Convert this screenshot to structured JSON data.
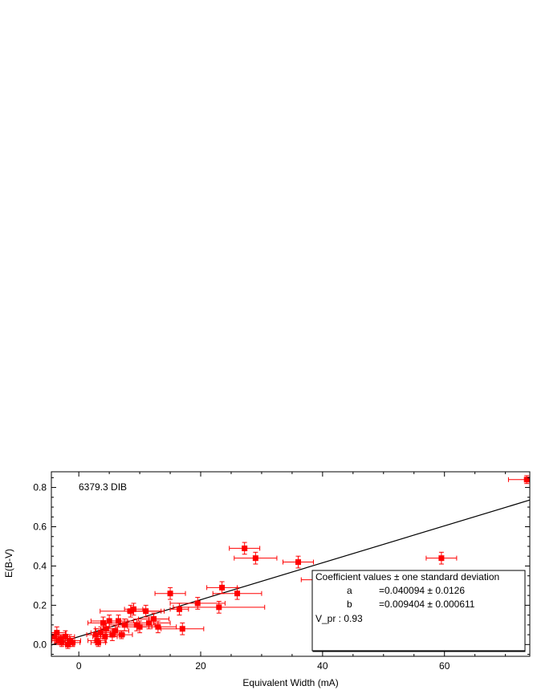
{
  "chart_data": {
    "type": "scatter",
    "annotation": "6379.3 DIB",
    "xlabel": "Equivalent Width (mA)",
    "ylabel": "E(B-V)",
    "xlim": [
      -4.5,
      74
    ],
    "ylim": [
      -0.06,
      0.88
    ],
    "xticks": [
      0,
      20,
      40,
      60
    ],
    "yticks": [
      0.0,
      0.2,
      0.4,
      0.6,
      0.8
    ],
    "ytick_labels": [
      "0.0",
      "0.2",
      "0.4",
      "0.6",
      "0.8"
    ],
    "grid": false,
    "point_color": "#ff0000",
    "fit_color": "#000000",
    "fit": {
      "a": 0.040094,
      "b": 0.009404,
      "x_range": [
        -4.5,
        74
      ]
    },
    "fit_box": {
      "title": "Coefficient values ± one standard deviation",
      "rows": [
        {
          "name": "a",
          "value": "=0.040094 ± 0.0126"
        },
        {
          "name": "b",
          "value": "=0.009404 ± 0.000611"
        }
      ],
      "vpr": "V_pr : 0.93"
    },
    "points": [
      {
        "x": -4.0,
        "y": 0.04,
        "xerr": 1.2,
        "yerr": 0.02
      },
      {
        "x": -3.6,
        "y": 0.06,
        "xerr": 1.5,
        "yerr": 0.03
      },
      {
        "x": -3.4,
        "y": 0.02,
        "xerr": 1.0,
        "yerr": 0.02
      },
      {
        "x": -3.0,
        "y": 0.03,
        "xerr": 1.6,
        "yerr": 0.02
      },
      {
        "x": -2.8,
        "y": 0.01,
        "xerr": 1.2,
        "yerr": 0.02
      },
      {
        "x": -2.2,
        "y": 0.04,
        "xerr": 1.5,
        "yerr": 0.03
      },
      {
        "x": -1.8,
        "y": 0.0,
        "xerr": 1.0,
        "yerr": 0.02
      },
      {
        "x": -1.5,
        "y": 0.02,
        "xerr": 1.8,
        "yerr": 0.03
      },
      {
        "x": -1.0,
        "y": 0.01,
        "xerr": 1.2,
        "yerr": 0.02
      },
      {
        "x": 2.8,
        "y": 0.05,
        "xerr": 1.5,
        "yerr": 0.03
      },
      {
        "x": 3.0,
        "y": 0.02,
        "xerr": 1.5,
        "yerr": 0.02
      },
      {
        "x": 3.2,
        "y": 0.01,
        "xerr": 1.2,
        "yerr": 0.02
      },
      {
        "x": 3.6,
        "y": 0.06,
        "xerr": 1.6,
        "yerr": 0.03
      },
      {
        "x": 4.0,
        "y": 0.11,
        "xerr": 2.5,
        "yerr": 0.03
      },
      {
        "x": 4.3,
        "y": 0.04,
        "xerr": 2.0,
        "yerr": 0.03
      },
      {
        "x": 4.5,
        "y": 0.08,
        "xerr": 1.8,
        "yerr": 0.03
      },
      {
        "x": 5.0,
        "y": 0.12,
        "xerr": 3.0,
        "yerr": 0.03
      },
      {
        "x": 5.5,
        "y": 0.05,
        "xerr": 2.0,
        "yerr": 0.03
      },
      {
        "x": 6.0,
        "y": 0.07,
        "xerr": 2.2,
        "yerr": 0.03
      },
      {
        "x": 6.5,
        "y": 0.12,
        "xerr": 2.5,
        "yerr": 0.03
      },
      {
        "x": 7.0,
        "y": 0.05,
        "xerr": 1.8,
        "yerr": 0.02
      },
      {
        "x": 7.5,
        "y": 0.1,
        "xerr": 2.5,
        "yerr": 0.03
      },
      {
        "x": 8.5,
        "y": 0.17,
        "xerr": 5.0,
        "yerr": 0.03
      },
      {
        "x": 9.0,
        "y": 0.18,
        "xerr": 1.5,
        "yerr": 0.03
      },
      {
        "x": 9.5,
        "y": 0.1,
        "xerr": 3.0,
        "yerr": 0.03
      },
      {
        "x": 10.0,
        "y": 0.09,
        "xerr": 2.0,
        "yerr": 0.03
      },
      {
        "x": 11.0,
        "y": 0.17,
        "xerr": 3.0,
        "yerr": 0.03
      },
      {
        "x": 11.5,
        "y": 0.11,
        "xerr": 3.5,
        "yerr": 0.03
      },
      {
        "x": 12.3,
        "y": 0.13,
        "xerr": 2.5,
        "yerr": 0.03
      },
      {
        "x": 13.0,
        "y": 0.09,
        "xerr": 3.0,
        "yerr": 0.03
      },
      {
        "x": 15.0,
        "y": 0.26,
        "xerr": 2.5,
        "yerr": 0.03
      },
      {
        "x": 16.5,
        "y": 0.18,
        "xerr": 1.5,
        "yerr": 0.03
      },
      {
        "x": 17.0,
        "y": 0.08,
        "xerr": 3.5,
        "yerr": 0.03
      },
      {
        "x": 19.5,
        "y": 0.21,
        "xerr": 4.5,
        "yerr": 0.03
      },
      {
        "x": 23.0,
        "y": 0.19,
        "xerr": 7.5,
        "yerr": 0.03
      },
      {
        "x": 23.5,
        "y": 0.29,
        "xerr": 2.5,
        "yerr": 0.03
      },
      {
        "x": 26.0,
        "y": 0.26,
        "xerr": 4.0,
        "yerr": 0.03
      },
      {
        "x": 27.2,
        "y": 0.49,
        "xerr": 2.5,
        "yerr": 0.03
      },
      {
        "x": 29.0,
        "y": 0.44,
        "xerr": 3.5,
        "yerr": 0.03
      },
      {
        "x": 36.0,
        "y": 0.42,
        "xerr": 2.5,
        "yerr": 0.03
      },
      {
        "x": 40.5,
        "y": 0.33,
        "xerr": 4.0,
        "yerr": 0.03
      },
      {
        "x": 59.5,
        "y": 0.44,
        "xerr": 2.5,
        "yerr": 0.03
      },
      {
        "x": 73.5,
        "y": 0.84,
        "xerr": 3.0,
        "yerr": 0.02
      }
    ]
  }
}
